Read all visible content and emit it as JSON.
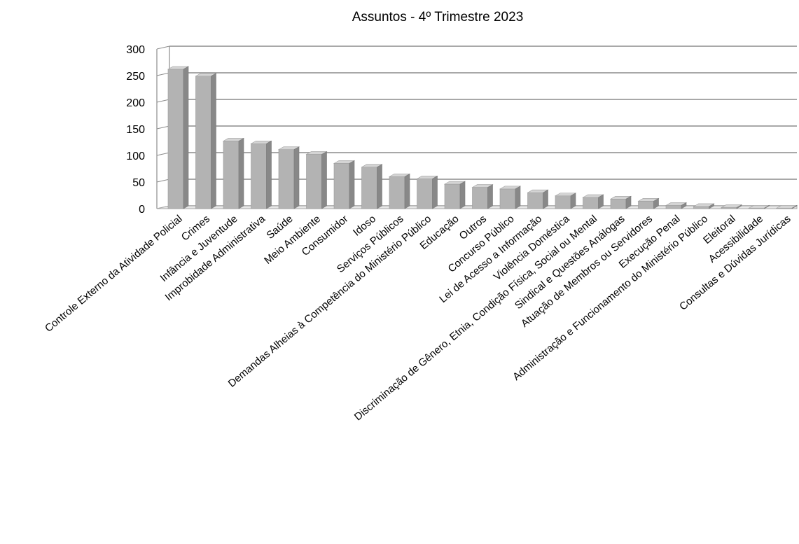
{
  "chart_data": {
    "type": "bar",
    "title": "Assuntos - 4º Trimestre 2023",
    "xlabel": "",
    "ylabel": "",
    "ylim": [
      0,
      300
    ],
    "yticks": [
      0,
      50,
      100,
      150,
      200,
      250,
      300
    ],
    "grid": true,
    "legend": "none",
    "style": "3d-column",
    "bar_color": "#b3b3b3",
    "categories": [
      "Controle Externo da Atividade Policial",
      "Crimes",
      "Infância e Juventude",
      "Improbidade Administrativa",
      "Saúde",
      "Meio Ambiente",
      "Consumidor",
      "Idoso",
      "Serviços Públicos",
      "Demandas Alheias à Competência do Ministério Público",
      "Educação",
      "Outros",
      "Concurso Público",
      "Lei de Acesso a Informação",
      "Violência Doméstica",
      "Discriminação de Gênero, Etnia, Condição Física, Social ou Mental",
      "Sindical e Questões Análogas",
      "Atuação de Membros ou Servidores",
      "Execução Penal",
      "Administração e Funcionamento do Ministério Público",
      "Eleitoral",
      "Acessibilidade",
      "Consultas e Dúvidas Jurídicas"
    ],
    "values": [
      262,
      249,
      127,
      122,
      111,
      102,
      85,
      78,
      60,
      56,
      46,
      40,
      37,
      30,
      24,
      21,
      18,
      14,
      6,
      4,
      2,
      1,
      1
    ]
  }
}
